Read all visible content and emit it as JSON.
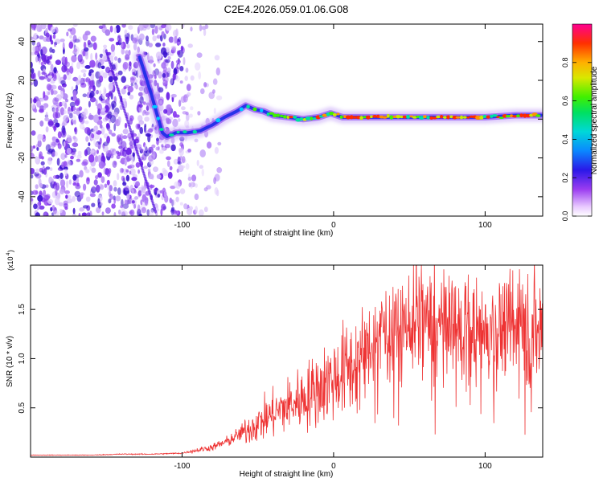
{
  "title": "C2E4.2026.059.01.06.G08",
  "colors": {
    "snr_line": "#ee3333",
    "axis": "#000000"
  },
  "chart_data": [
    {
      "type": "heatmap",
      "name": "spectrogram",
      "xlabel": "Height of straight line (km)",
      "ylabel": "Frequency (Hz)",
      "xlim": [
        -200,
        138
      ],
      "ylim": [
        -50,
        49
      ],
      "xticks": [
        -100,
        0,
        100
      ],
      "xtick_labels": [
        "-100",
        "0",
        "100"
      ],
      "yticks": [
        -40,
        -20,
        0,
        20,
        40
      ],
      "ytick_labels": [
        "-40",
        "-20",
        "0",
        "20",
        "40"
      ],
      "colorbar": {
        "label": "Normalized spectral amplitude",
        "range": [
          0,
          1
        ],
        "ticks": [
          0,
          0.2,
          0.4,
          0.6,
          0.8
        ],
        "tick_labels": [
          "0.0",
          "0.2",
          "0.4",
          "0.6",
          "0.8"
        ]
      },
      "ridge": [
        {
          "x": -128,
          "f": 32
        },
        {
          "x": -124,
          "f": 22
        },
        {
          "x": -120,
          "f": 12
        },
        {
          "x": -116,
          "f": 1
        },
        {
          "x": -113,
          "f": -7
        },
        {
          "x": -110,
          "f": -9
        },
        {
          "x": -104,
          "f": -7
        },
        {
          "x": -96,
          "f": -7
        },
        {
          "x": -88,
          "f": -6
        },
        {
          "x": -80,
          "f": -3
        },
        {
          "x": -72,
          "f": 1
        },
        {
          "x": -64,
          "f": 4
        },
        {
          "x": -58,
          "f": 7
        },
        {
          "x": -52,
          "f": 5
        },
        {
          "x": -46,
          "f": 4
        },
        {
          "x": -40,
          "f": 2
        },
        {
          "x": -30,
          "f": 1
        },
        {
          "x": -20,
          "f": 0
        },
        {
          "x": -10,
          "f": 1
        },
        {
          "x": -2,
          "f": 3
        },
        {
          "x": 6,
          "f": 1
        },
        {
          "x": 20,
          "f": 1
        },
        {
          "x": 40,
          "f": 1
        },
        {
          "x": 60,
          "f": 1
        },
        {
          "x": 80,
          "f": 1
        },
        {
          "x": 100,
          "f": 1
        },
        {
          "x": 120,
          "f": 2
        },
        {
          "x": 137,
          "f": 2
        }
      ]
    },
    {
      "type": "line",
      "name": "snr",
      "xlabel": "Height of straight line (km)",
      "ylabel": "SNR (10 * v/v)",
      "y_multiplier_label": "(x10",
      "y_multiplier_exponent": "4",
      "xlim": [
        -200,
        138
      ],
      "ylim": [
        0,
        1.95
      ],
      "xticks": [
        -100,
        0,
        100
      ],
      "xtick_labels": [
        "-100",
        "0",
        "100"
      ],
      "yticks": [
        0.5,
        1.0,
        1.5
      ],
      "ytick_labels": [
        "0.5",
        "1.0",
        "1.5"
      ],
      "series": [
        {
          "name": "SNR",
          "x": [
            -200,
            -180,
            -160,
            -140,
            -120,
            -100,
            -90,
            -80,
            -70,
            -60,
            -50,
            -40,
            -30,
            -20,
            -10,
            0,
            10,
            20,
            25,
            30,
            40,
            50,
            60,
            70,
            80,
            90,
            100,
            110,
            120,
            130,
            138
          ],
          "y": [
            0.02,
            0.02,
            0.02,
            0.03,
            0.03,
            0.04,
            0.07,
            0.1,
            0.16,
            0.25,
            0.34,
            0.44,
            0.52,
            0.6,
            0.7,
            0.8,
            0.9,
            1.0,
            1.15,
            1.25,
            1.32,
            1.36,
            1.34,
            1.3,
            1.3,
            1.28,
            1.27,
            1.28,
            1.28,
            1.3,
            1.3
          ]
        }
      ]
    }
  ]
}
